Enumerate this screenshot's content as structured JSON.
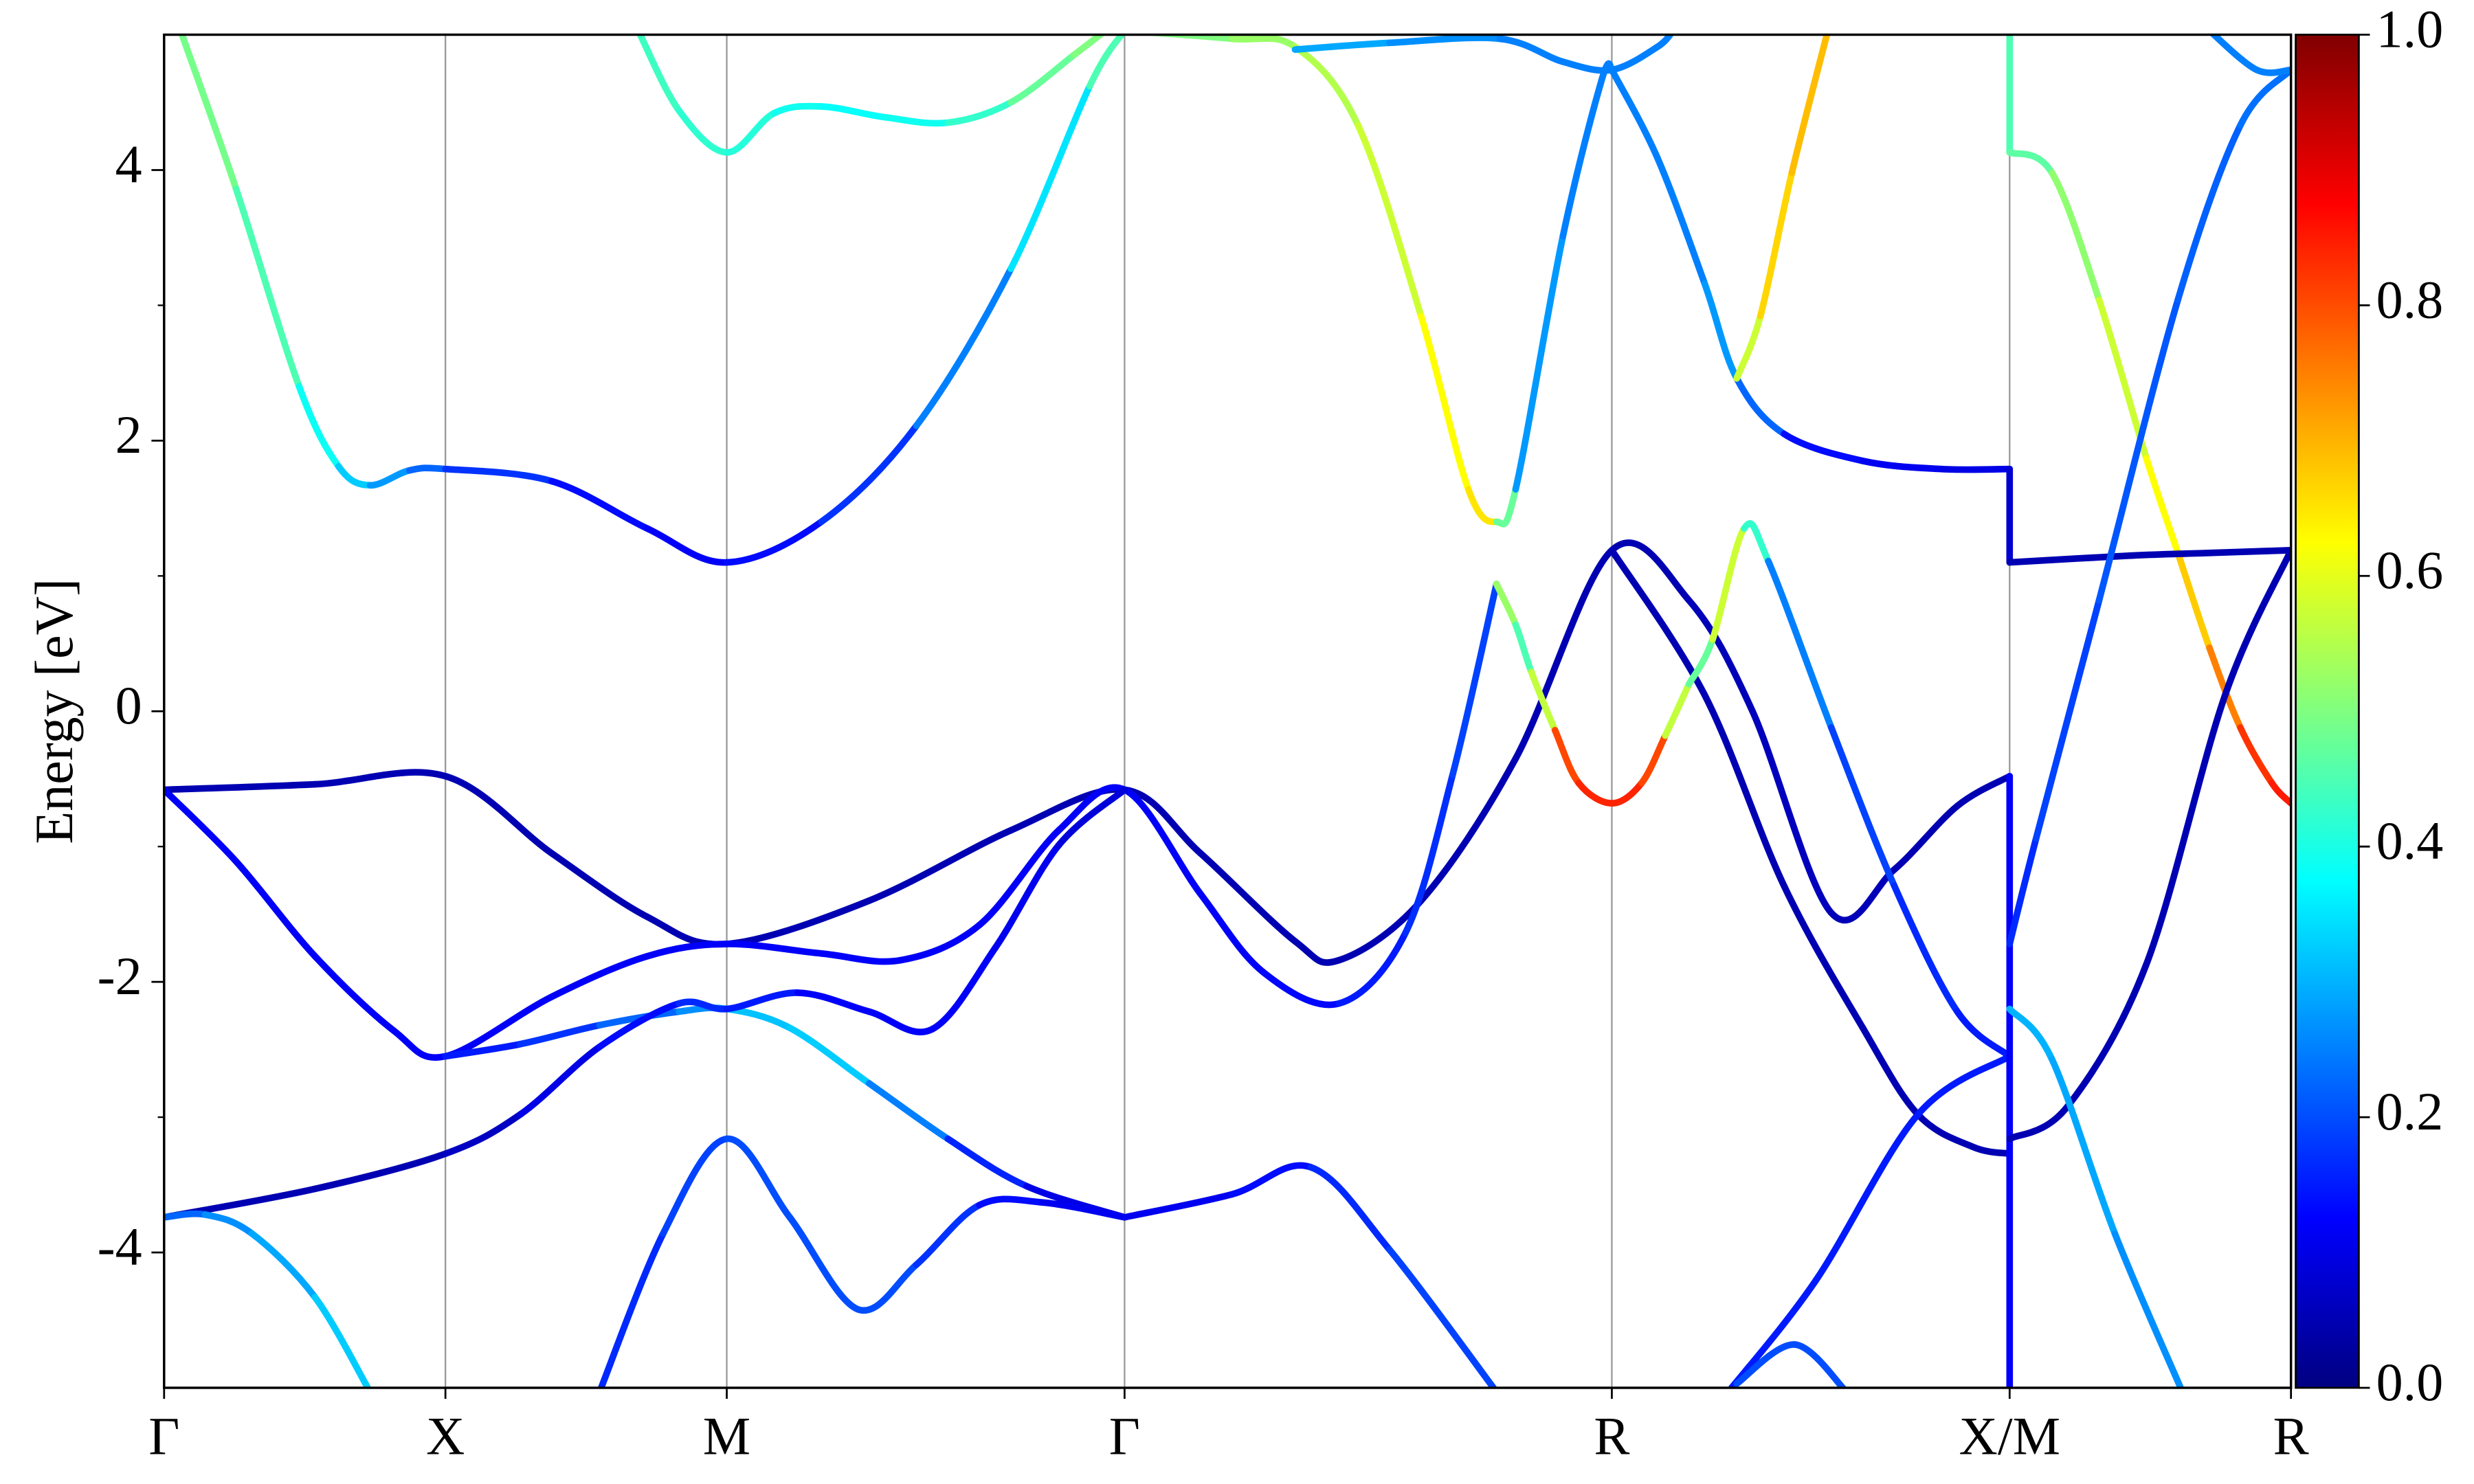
{
  "chart_data": {
    "type": "line",
    "ylabel": "Energy [eV]",
    "xlim": [
      0,
      3.78
    ],
    "xticks": [
      {
        "value": 0,
        "label": "Γ"
      },
      {
        "value": 0.5,
        "label": "X"
      },
      {
        "value": 1.0,
        "label": "M"
      },
      {
        "value": 1.707,
        "label": "Γ"
      },
      {
        "value": 2.573,
        "label": "R"
      },
      {
        "value": 3.28,
        "label": "X/M"
      },
      {
        "value": 3.78,
        "label": "R"
      }
    ],
    "vgrid": true,
    "ylim": [
      -5,
      5
    ],
    "yticks": [
      -4,
      -2,
      0,
      2,
      4
    ],
    "yminorticks": [
      -3,
      -1,
      1,
      3
    ],
    "colorbar": {
      "colormap": "jet",
      "clim": [
        0,
        1
      ],
      "ticks": [
        {
          "value": 0,
          "label": "0.0"
        },
        {
          "value": 0.2,
          "label": "0.2"
        },
        {
          "value": 0.4,
          "label": "0.4"
        },
        {
          "value": 0.6,
          "label": "0.6"
        },
        {
          "value": 0.8,
          "label": "0.8"
        },
        {
          "value": 1.0,
          "label": "1.0"
        }
      ]
    },
    "series": [
      {
        "x": [
          0,
          0.268,
          0.5,
          0.689,
          0.859,
          1.0,
          1.253,
          1.505,
          1.707,
          1.842,
          2.01,
          2.088,
          2.234,
          2.402,
          2.573,
          2.71,
          2.823,
          2.963,
          3.075,
          3.187,
          3.28
        ],
        "values": [
          -0.58,
          -0.54,
          -0.48,
          -1.05,
          -1.52,
          -1.72,
          -1.4,
          -0.88,
          -0.58,
          -1.05,
          -1.7,
          -1.84,
          -1.4,
          -0.35,
          1.19,
          0.82,
          0,
          -1.49,
          -1.17,
          -0.7,
          -0.48
        ],
        "weights": [
          0.05,
          0.05,
          0.05,
          0.05,
          0.05,
          0.05,
          0.05,
          0.05,
          0.05,
          0.05,
          0.05,
          0.05,
          0.05,
          0.05,
          0.05,
          0.05,
          0.06,
          0.06,
          0.05,
          0.05,
          0.05
        ]
      },
      {
        "x": [
          0,
          0.128,
          0.268,
          0.408,
          0.5,
          0.689,
          0.859,
          1.0,
          1.168,
          1.309,
          1.449,
          1.59,
          1.707,
          1.842,
          1.954,
          2.088,
          2.206,
          2.29,
          2.368
        ],
        "values": [
          -0.58,
          -1.11,
          -1.81,
          -2.36,
          -2.55,
          -2.11,
          -1.81,
          -1.72,
          -1.79,
          -1.84,
          -1.58,
          -0.88,
          -0.58,
          -1.35,
          -1.93,
          -2.16,
          -1.64,
          -0.47,
          0.94
        ],
        "weights": [
          0.12,
          0.12,
          0.12,
          0.12,
          0.12,
          0.12,
          0.12,
          0.12,
          0.12,
          0.12,
          0.12,
          0.12,
          0.12,
          0.12,
          0.12,
          0.14,
          0.16,
          0.18,
          0.2
        ]
      },
      {
        "x": [
          2.368,
          2.402,
          2.43,
          2.472,
          2.514,
          2.573,
          2.626,
          2.668,
          2.71
        ],
        "values": [
          0.94,
          0.64,
          0.29,
          -0.14,
          -0.53,
          -0.68,
          -0.53,
          -0.18,
          0.2
        ],
        "weights": [
          0.5,
          0.55,
          0.35,
          0.78,
          0.83,
          0.85,
          0.83,
          0.78,
          0.35
        ]
      },
      {
        "x": [
          0.031,
          0.128,
          0.24,
          0.31,
          0.366,
          0.436,
          0.5,
          0.689,
          0.859,
          1.0,
          1.168,
          1.337,
          1.505,
          1.645,
          1.707
        ],
        "values": [
          5.01,
          3.86,
          2.4,
          1.81,
          1.67,
          1.78,
          1.79,
          1.7,
          1.35,
          1.1,
          1.4,
          2.11,
          3.27,
          4.62,
          5.03
        ],
        "weights": [
          0.5,
          0.48,
          0.42,
          0.35,
          0.3,
          0.25,
          0.2,
          0.15,
          0.12,
          0.12,
          0.15,
          0.2,
          0.3,
          0.4,
          0.5
        ]
      },
      {
        "x": [
          0.845,
          0.915,
          1.0,
          1.084,
          1.168,
          1.281,
          1.393,
          1.505,
          1.617,
          1.673
        ],
        "values": [
          5.01,
          4.44,
          4.13,
          4.42,
          4.47,
          4.39,
          4.35,
          4.5,
          4.85,
          5.03
        ],
        "weights": [
          0.45,
          0.42,
          0.42,
          0.4,
          0.38,
          0.38,
          0.4,
          0.45,
          0.5,
          0.5
        ]
      },
      {
        "x": [
          0.5,
          0.633,
          0.774,
          0.915,
          1.0,
          1.112,
          1.253,
          1.393,
          1.533,
          1.707
        ],
        "values": [
          -2.55,
          -2.46,
          -2.32,
          -2.22,
          -2.2,
          -2.34,
          -2.75,
          -3.16,
          -3.51,
          -3.74
        ],
        "weights": [
          0.15,
          0.15,
          0.2,
          0.25,
          0.28,
          0.35,
          0.3,
          0.2,
          0.12,
          0.08
        ]
      },
      {
        "x": [
          0,
          0.268,
          0.5,
          0.633,
          0.774,
          0.915,
          1.0,
          1.126,
          1.253,
          1.365,
          1.477,
          1.59,
          1.707
        ],
        "values": [
          -3.74,
          -3.53,
          -3.27,
          -2.98,
          -2.48,
          -2.16,
          -2.2,
          -2.08,
          -2.22,
          -2.35,
          -1.75,
          -0.99,
          -0.58
        ],
        "weights": [
          0.05,
          0.05,
          0.05,
          0.08,
          0.12,
          0.15,
          0.18,
          0.12,
          0.12,
          0.12,
          0.12,
          0.1,
          0.08
        ]
      },
      {
        "x": [
          0,
          0.073,
          0.156,
          0.268,
          0.366
        ],
        "values": [
          -3.74,
          -3.72,
          -3.86,
          -4.33,
          -5.03
        ],
        "weights": [
          0.2,
          0.25,
          0.28,
          0.3,
          0.35
        ]
      },
      {
        "x": [
          0.774,
          0.887,
          1.0,
          1.112,
          1.233,
          1.337,
          1.449,
          1.561,
          1.707
        ],
        "values": [
          -5.03,
          -3.86,
          -3.16,
          -3.74,
          -4.42,
          -4.09,
          -3.65,
          -3.63,
          -3.74
        ],
        "weights": [
          0.15,
          0.18,
          0.2,
          0.2,
          0.2,
          0.2,
          0.15,
          0.12,
          0.1
        ]
      },
      {
        "x": [
          1.707,
          1.898,
          2.038,
          2.178,
          2.368
        ],
        "values": [
          -3.74,
          -3.57,
          -3.37,
          -3.98,
          -5.03
        ],
        "weights": [
          0.1,
          0.12,
          0.15,
          0.18,
          0.2
        ]
      },
      {
        "x": [
          1.707,
          1.898,
          2.01,
          2.122,
          2.234,
          2.318,
          2.368,
          2.402,
          2.486,
          2.556,
          2.573
        ],
        "values": [
          5.03,
          4.97,
          4.91,
          4.33,
          2.92,
          1.64,
          1.4,
          1.64,
          3.51,
          4.68,
          4.74
        ],
        "weights": [
          0.5,
          0.5,
          0.55,
          0.55,
          0.6,
          0.65,
          0.65,
          0.3,
          0.25,
          0.25,
          0.25
        ]
      },
      {
        "x": [
          2.01,
          2.178,
          2.374,
          2.486,
          2.573,
          2.654,
          2.682
        ],
        "values": [
          4.89,
          4.94,
          4.97,
          4.8,
          4.74,
          4.91,
          5.03
        ],
        "weights": [
          0.3,
          0.28,
          0.25,
          0.25,
          0.25,
          0.25,
          0.25
        ]
      },
      {
        "x": [
          2.573,
          2.654,
          2.738,
          2.795,
          2.879,
          3.019,
          3.159,
          3.28
        ],
        "values": [
          4.74,
          4.09,
          3.16,
          2.46,
          2.05,
          1.85,
          1.79,
          1.79
        ],
        "weights": [
          0.25,
          0.25,
          0.25,
          0.3,
          0.15,
          0.12,
          0.1,
          0.1
        ]
      },
      {
        "x": [
          2.795,
          2.837,
          2.893,
          2.957
        ],
        "values": [
          2.46,
          2.92,
          3.98,
          5.03
        ],
        "weights": [
          0.5,
          0.65,
          0.68,
          0.7
        ]
      },
      {
        "x": [
          2.573,
          2.738,
          2.879,
          3.019,
          3.117,
          3.215,
          3.28
        ],
        "values": [
          1.19,
          0.12,
          -1.29,
          -2.34,
          -2.98,
          -3.22,
          -3.27
        ],
        "weights": [
          0.05,
          0.05,
          0.05,
          0.05,
          0.05,
          0.05,
          0.05
        ]
      },
      {
        "x": [
          2.71,
          2.752,
          2.808,
          2.851,
          2.963,
          3.075,
          3.187,
          3.28
        ],
        "values": [
          0.2,
          0.53,
          1.35,
          1.11,
          -0.12,
          -1.29,
          -2.22,
          -2.55
        ],
        "weights": [
          0.35,
          0.6,
          0.55,
          0.3,
          0.2,
          0.18,
          0.15,
          0.15
        ]
      },
      {
        "x": [
          2.78,
          2.935,
          3.117,
          3.28
        ],
        "values": [
          -5.03,
          -4.21,
          -2.98,
          -2.55
        ],
        "weights": [
          0.15,
          0.15,
          0.15,
          0.15
        ]
      },
      {
        "x": [
          2.795,
          2.898,
          2.99
        ],
        "values": [
          -4.97,
          -4.68,
          -5.03
        ],
        "weights": [
          0.2,
          0.2,
          0.2
        ]
      },
      {
        "x": [
          3.28,
          3.28
        ],
        "values": [
          1.79,
          1.1
        ],
        "weights": [
          0.08,
          0.08
        ]
      },
      {
        "x": [
          3.28,
          3.28
        ],
        "values": [
          5.03,
          4.13
        ],
        "weights": [
          0.45,
          0.45
        ]
      },
      {
        "x": [
          3.28,
          3.28
        ],
        "values": [
          -0.48,
          -5.03
        ],
        "weights": [
          0.12,
          0.12
        ]
      },
      {
        "x": [
          3.28,
          3.355,
          3.439,
          3.523,
          3.579,
          3.635,
          3.69,
          3.746,
          3.78
        ],
        "values": [
          4.13,
          3.98,
          3.04,
          1.87,
          1.17,
          0.47,
          -0.12,
          -0.53,
          -0.68
        ],
        "weights": [
          0.45,
          0.48,
          0.55,
          0.6,
          0.65,
          0.7,
          0.8,
          0.85,
          0.85
        ]
      },
      {
        "x": [
          3.28,
          3.495,
          3.635,
          3.78
        ],
        "values": [
          1.1,
          1.15,
          1.17,
          1.19
        ],
        "weights": [
          0.05,
          0.05,
          0.05,
          0.05
        ]
      },
      {
        "x": [
          3.28,
          3.327,
          3.439,
          3.579,
          3.69,
          3.78
        ],
        "values": [
          -1.72,
          -0.94,
          0.82,
          3.04,
          4.33,
          4.74
        ],
        "weights": [
          0.15,
          0.18,
          0.2,
          0.22,
          0.22,
          0.25
        ]
      },
      {
        "x": [
          3.28,
          3.383,
          3.523,
          3.663,
          3.78
        ],
        "values": [
          -3.16,
          -2.92,
          -1.87,
          0.12,
          1.19
        ],
        "weights": [
          0.05,
          0.05,
          0.05,
          0.05,
          0.05
        ]
      },
      {
        "x": [
          3.28,
          3.355,
          3.467,
          3.587
        ],
        "values": [
          -2.2,
          -2.57,
          -3.86,
          -5.03
        ],
        "weights": [
          0.3,
          0.3,
          0.28,
          0.25
        ]
      },
      {
        "x": [
          3.635,
          3.719,
          3.78
        ],
        "values": [
          5.03,
          4.74,
          4.74
        ],
        "weights": [
          0.25,
          0.25,
          0.25
        ]
      }
    ]
  }
}
